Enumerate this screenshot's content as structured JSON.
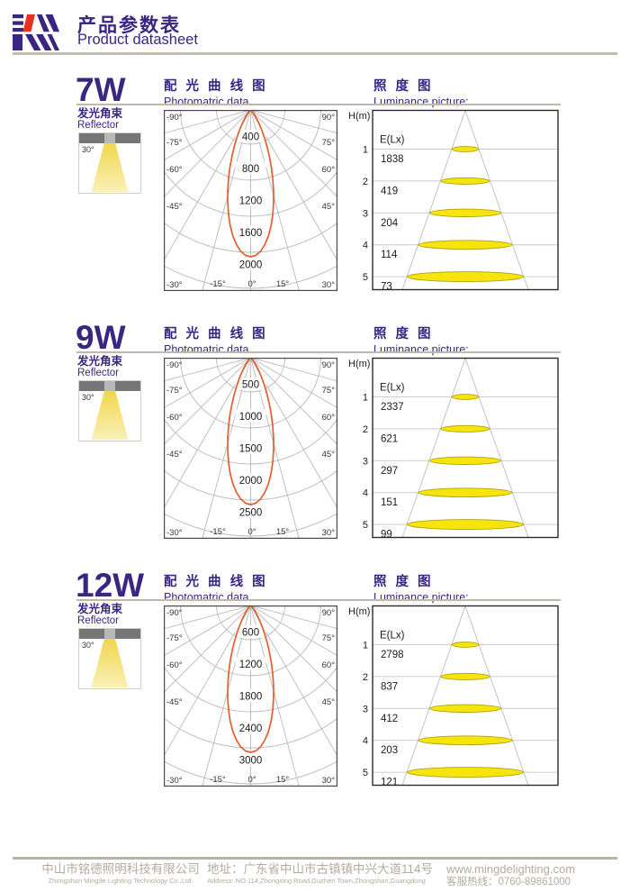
{
  "header": {
    "title_cn": "产品参数表",
    "title_en": "Product datasheet"
  },
  "colors": {
    "purple": "#392682",
    "logo_red": "#e6331f",
    "curve_orange": "#e55e2d",
    "spot_yellow": "#f5e50c",
    "tan_rule": "#c0b8ab",
    "footer_text": "#b4ab9e"
  },
  "polar_axes": {
    "left": [
      "-90°",
      "-75°",
      "-60°",
      "-45°",
      "-30°"
    ],
    "right": [
      "90°",
      "75°",
      "60°",
      "45°",
      "30°"
    ],
    "bottom": [
      "-15°",
      "0°",
      "15°"
    ]
  },
  "sections": [
    {
      "wattage": "7W",
      "reflector": {
        "label_cn": "发光角束",
        "label_en": "Reflector",
        "beam_angle": "30°"
      },
      "photometric": {
        "title_cn": "配 光 曲 线 图",
        "title_en": "Photomatric data",
        "ring_values": [
          400,
          800,
          1200,
          1600,
          2000
        ]
      },
      "luminance": {
        "title_cn": "照 度 图",
        "title_en": "Luminance picture:",
        "h_label": "H(m)",
        "e_label": "E(Lx)",
        "heights": [
          1,
          2,
          3,
          4,
          5
        ],
        "values": [
          1838,
          419,
          204,
          114,
          73
        ]
      }
    },
    {
      "wattage": "9W",
      "reflector": {
        "label_cn": "发光角束",
        "label_en": "Reflector",
        "beam_angle": "30°"
      },
      "photometric": {
        "title_cn": "配 光 曲 线 图",
        "title_en": "Photomatric data",
        "ring_values": [
          500,
          1000,
          1500,
          2000,
          2500
        ]
      },
      "luminance": {
        "title_cn": "照 度 图",
        "title_en": "Luminance picture:",
        "h_label": "H(m)",
        "e_label": "E(Lx)",
        "heights": [
          1,
          2,
          3,
          4,
          5
        ],
        "values": [
          2337,
          621,
          297,
          151,
          99
        ]
      }
    },
    {
      "wattage": "12W",
      "reflector": {
        "label_cn": "发光角束",
        "label_en": "Reflector",
        "beam_angle": "30°"
      },
      "photometric": {
        "title_cn": "配 光 曲 线 图",
        "title_en": "Photomatric data",
        "ring_values": [
          600,
          1200,
          1800,
          2400,
          3000
        ]
      },
      "luminance": {
        "title_cn": "照 度 图",
        "title_en": "Luminance picture:",
        "h_label": "H(m)",
        "e_label": "E(Lx)",
        "heights": [
          1,
          2,
          3,
          4,
          5
        ],
        "values": [
          2798,
          837,
          412,
          203,
          121
        ]
      }
    }
  ],
  "chart_data": [
    {
      "type": "line",
      "subtype": "polar-intensity",
      "title": "7W Photomatric data",
      "radial_ticks": [
        400,
        800,
        1200,
        1600,
        2000
      ],
      "angle_ticks_deg": [
        -90,
        -75,
        -60,
        -45,
        -30,
        -15,
        0,
        15,
        30,
        45,
        60,
        75,
        90
      ],
      "beam_half_angle_deg": 15,
      "peak_reach_approx": 1650
    },
    {
      "type": "table",
      "title": "7W Luminance picture",
      "columns": [
        "H(m)",
        "E(Lx)"
      ],
      "rows": [
        [
          1,
          1838
        ],
        [
          2,
          419
        ],
        [
          3,
          204
        ],
        [
          4,
          114
        ],
        [
          5,
          73
        ]
      ]
    },
    {
      "type": "line",
      "subtype": "polar-intensity",
      "title": "9W Photomatric data",
      "radial_ticks": [
        500,
        1000,
        1500,
        2000,
        2500
      ],
      "angle_ticks_deg": [
        -90,
        -75,
        -60,
        -45,
        -30,
        -15,
        0,
        15,
        30,
        45,
        60,
        75,
        90
      ],
      "beam_half_angle_deg": 15,
      "peak_reach_approx": 2050
    },
    {
      "type": "table",
      "title": "9W Luminance picture",
      "columns": [
        "H(m)",
        "E(Lx)"
      ],
      "rows": [
        [
          1,
          2337
        ],
        [
          2,
          621
        ],
        [
          3,
          297
        ],
        [
          4,
          151
        ],
        [
          5,
          99
        ]
      ]
    },
    {
      "type": "line",
      "subtype": "polar-intensity",
      "title": "12W Photomatric data",
      "radial_ticks": [
        600,
        1200,
        1800,
        2400,
        3000
      ],
      "angle_ticks_deg": [
        -90,
        -75,
        -60,
        -45,
        -30,
        -15,
        0,
        15,
        30,
        45,
        60,
        75,
        90
      ],
      "beam_half_angle_deg": 15,
      "peak_reach_approx": 2450
    },
    {
      "type": "table",
      "title": "12W Luminance picture",
      "columns": [
        "H(m)",
        "E(Lx)"
      ],
      "rows": [
        [
          1,
          2798
        ],
        [
          2,
          837
        ],
        [
          3,
          412
        ],
        [
          4,
          203
        ],
        [
          5,
          121
        ]
      ]
    }
  ],
  "footer": {
    "company_cn": "中山市铭德照明科技有限公司",
    "company_en": "Zhongshan Mingde Lighting Technology Co.,Ltd.",
    "address_cn": "地址：广东省中山市古镇镇中兴大道114号",
    "address_en": "Address: NO.114,Zhongxing Road,Guzhen Town,Zhongshan,Guangdong",
    "website": "www.mingdelighting.com",
    "hotline": "客服热线：0760-89861000"
  }
}
